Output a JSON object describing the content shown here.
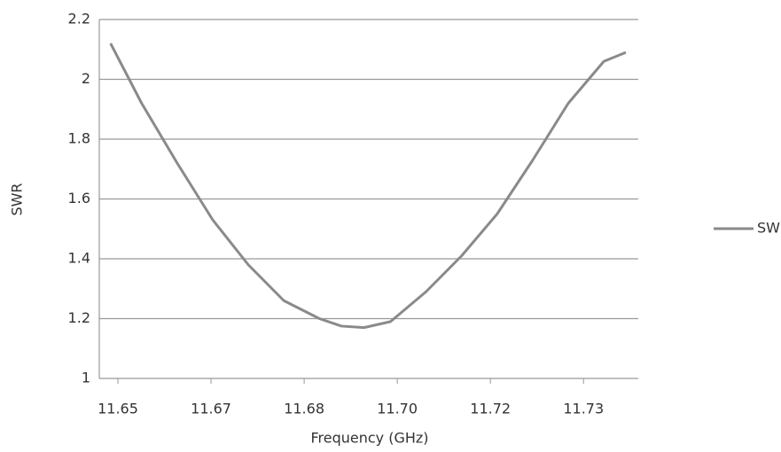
{
  "chart_data": {
    "type": "line",
    "x_label": "Frequency (GHz)",
    "y_label": "SWR",
    "x": [
      11.6487,
      11.6542,
      11.6605,
      11.6668,
      11.6731,
      11.6794,
      11.6857,
      11.6896,
      11.6936,
      11.6983,
      11.7046,
      11.7109,
      11.7172,
      11.7235,
      11.7298,
      11.7361,
      11.74
    ],
    "series": [
      {
        "name": "SWR",
        "color": "#8a8a8a",
        "values": [
          2.12,
          1.92,
          1.72,
          1.53,
          1.38,
          1.26,
          1.2,
          1.175,
          1.17,
          1.19,
          1.29,
          1.41,
          1.55,
          1.73,
          1.92,
          2.06,
          2.09
        ]
      }
    ],
    "xlim": [
      11.6467,
      11.7422
    ],
    "xticks": [
      11.65,
      {
        "value": 11.6665,
        "label": "11.67"
      },
      {
        "value": 11.683,
        "label": "11.68"
      },
      {
        "value": 11.6995,
        "label": "11.70"
      },
      {
        "value": 11.716,
        "label": "11.72"
      },
      {
        "value": 11.7325,
        "label": "11.73"
      }
    ],
    "ylim": [
      1,
      2.2
    ],
    "yticks": [
      1,
      1.2,
      1.4,
      1.6,
      1.8,
      2,
      2.2
    ],
    "grid": true,
    "legend": "right"
  }
}
